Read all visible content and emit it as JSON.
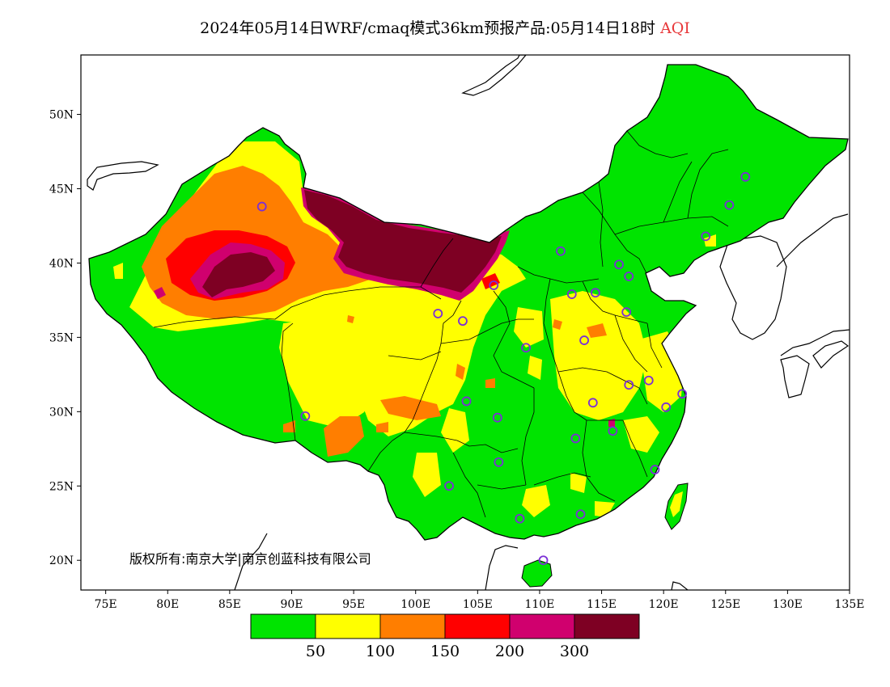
{
  "title": {
    "main": "2024年05月14日WRF/cmaq模式36km预报产品:05月14日18时",
    "variable": "AQI"
  },
  "copyright": "版权所有:南京大学|南京创蓝科技有限公司",
  "axes": {
    "lon_ticks": [
      "75E",
      "80E",
      "85E",
      "90E",
      "95E",
      "100E",
      "105E",
      "110E",
      "115E",
      "120E",
      "125E",
      "130E",
      "135E"
    ],
    "lat_ticks": [
      "20N",
      "25N",
      "30N",
      "35N",
      "40N",
      "45N",
      "50N"
    ],
    "lon_range": [
      73,
      135
    ],
    "lat_range": [
      18,
      54
    ]
  },
  "colorbar": {
    "colors": [
      "#00e400",
      "#ffff00",
      "#ff7e00",
      "#ff0000",
      "#d0006e",
      "#7e0023"
    ],
    "labels": [
      "50",
      "100",
      "150",
      "200",
      "300"
    ]
  },
  "colors": {
    "station_marker": "#7b2fd6",
    "boundary": "#000000",
    "background": "#ffffff"
  },
  "chart_data": {
    "type": "heatmap",
    "title": "2024年05月14日WRF/cmaq模式36km预报产品:05月14日18时 AQI",
    "xlabel": "",
    "ylabel": "",
    "xlim": [
      73,
      135
    ],
    "ylim": [
      18,
      54
    ],
    "levels": [
      50,
      100,
      150,
      200,
      300
    ],
    "stations": [
      [
        87.6,
        43.8
      ],
      [
        91.1,
        29.7
      ],
      [
        101.8,
        36.6
      ],
      [
        103.8,
        36.1
      ],
      [
        106.3,
        38.5
      ],
      [
        104.1,
        30.7
      ],
      [
        106.6,
        29.6
      ],
      [
        106.7,
        26.6
      ],
      [
        102.7,
        25.0
      ],
      [
        108.4,
        22.8
      ],
      [
        110.3,
        20.0
      ],
      [
        113.3,
        23.1
      ],
      [
        112.9,
        28.2
      ],
      [
        114.3,
        30.6
      ],
      [
        115.9,
        28.7
      ],
      [
        117.2,
        31.8
      ],
      [
        118.8,
        32.1
      ],
      [
        120.2,
        30.3
      ],
      [
        121.5,
        31.2
      ],
      [
        119.3,
        26.1
      ],
      [
        108.9,
        34.3
      ],
      [
        112.6,
        37.9
      ],
      [
        114.5,
        38.0
      ],
      [
        116.4,
        39.9
      ],
      [
        117.2,
        39.1
      ],
      [
        111.7,
        40.8
      ],
      [
        113.6,
        34.8
      ],
      [
        117.0,
        36.7
      ],
      [
        123.4,
        41.8
      ],
      [
        125.3,
        43.9
      ],
      [
        126.6,
        45.8
      ]
    ]
  }
}
